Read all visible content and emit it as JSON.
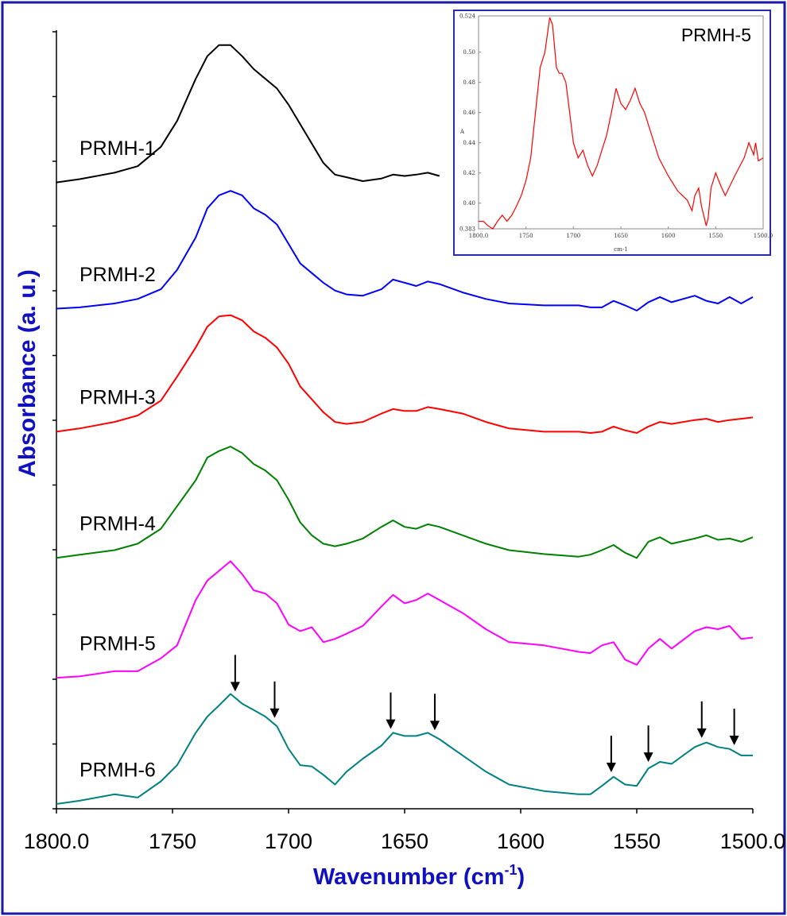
{
  "chart_data": {
    "type": "line",
    "title": "",
    "xlabel": "Wavenumber (cm",
    "xlabel_sup": "-1",
    "xlabel_close": ")",
    "ylabel": "Absorbance (a. u.)",
    "x_range": [
      1800.0,
      1500.0
    ],
    "x_ticks": [
      1800.0,
      1750,
      1700,
      1650,
      1600,
      1550,
      1500.0
    ],
    "x_tick_labels": [
      "1800.0",
      "1750",
      "1700",
      "1650",
      "1600",
      "1550",
      "1500.0"
    ],
    "y_range": [
      0,
      12
    ],
    "y_ticks": [
      0,
      1,
      2,
      3,
      4,
      5,
      6,
      7,
      8,
      9,
      10,
      11,
      12
    ],
    "series": [
      {
        "name": "PRMH-1",
        "color": "#000000",
        "offset": 9.6,
        "x": [
          1800,
          1790,
          1775,
          1765,
          1755,
          1748,
          1740,
          1735,
          1730,
          1725,
          1720,
          1715,
          1710,
          1705,
          1700,
          1695,
          1690,
          1685,
          1680,
          1675,
          1668,
          1660,
          1655,
          1650,
          1645,
          1640,
          1635
        ],
        "y": [
          0.0,
          0.05,
          0.15,
          0.25,
          0.55,
          0.95,
          1.6,
          1.95,
          2.12,
          2.12,
          1.95,
          1.75,
          1.6,
          1.45,
          1.2,
          0.9,
          0.6,
          0.3,
          0.12,
          0.08,
          0.02,
          0.06,
          0.12,
          0.1,
          0.12,
          0.15,
          0.1
        ]
      },
      {
        "name": "PRMH-2",
        "color": "#0000ff",
        "offset": 7.65,
        "x": [
          1800,
          1790,
          1775,
          1765,
          1755,
          1748,
          1740,
          1735,
          1730,
          1725,
          1720,
          1715,
          1710,
          1705,
          1700,
          1695,
          1690,
          1685,
          1680,
          1675,
          1668,
          1660,
          1655,
          1650,
          1645,
          1640,
          1635,
          1625,
          1615,
          1605,
          1590,
          1575,
          1570,
          1565,
          1560,
          1555,
          1550,
          1545,
          1540,
          1535,
          1525,
          1520,
          1515,
          1510,
          1505,
          1500
        ],
        "y": [
          0.0,
          0.02,
          0.08,
          0.15,
          0.3,
          0.6,
          1.1,
          1.55,
          1.75,
          1.82,
          1.75,
          1.55,
          1.45,
          1.3,
          1.0,
          0.7,
          0.55,
          0.4,
          0.28,
          0.22,
          0.2,
          0.3,
          0.45,
          0.4,
          0.35,
          0.42,
          0.38,
          0.25,
          0.15,
          0.08,
          0.05,
          0.05,
          0.02,
          0.02,
          0.12,
          0.05,
          -0.03,
          0.1,
          0.18,
          0.1,
          0.2,
          0.12,
          0.08,
          0.18,
          0.08,
          0.18
        ]
      },
      {
        "name": "PRMH-3",
        "color": "#ff0000",
        "offset": 5.75,
        "x": [
          1800,
          1790,
          1775,
          1765,
          1755,
          1748,
          1740,
          1735,
          1730,
          1725,
          1720,
          1715,
          1710,
          1705,
          1700,
          1695,
          1690,
          1685,
          1680,
          1675,
          1668,
          1660,
          1655,
          1650,
          1645,
          1640,
          1635,
          1625,
          1615,
          1605,
          1590,
          1575,
          1570,
          1565,
          1560,
          1555,
          1550,
          1545,
          1540,
          1535,
          1525,
          1520,
          1515,
          1510,
          1505,
          1500
        ],
        "y": [
          0.0,
          0.05,
          0.15,
          0.25,
          0.48,
          0.85,
          1.3,
          1.62,
          1.78,
          1.8,
          1.72,
          1.55,
          1.45,
          1.3,
          1.05,
          0.7,
          0.5,
          0.3,
          0.15,
          0.12,
          0.15,
          0.28,
          0.35,
          0.32,
          0.32,
          0.38,
          0.35,
          0.28,
          0.15,
          0.05,
          0.0,
          0.0,
          -0.02,
          0.0,
          0.08,
          0.02,
          -0.02,
          0.08,
          0.15,
          0.12,
          0.18,
          0.2,
          0.15,
          0.18,
          0.2,
          0.22
        ]
      },
      {
        "name": "PRMH-4",
        "color": "#008000",
        "offset": 3.8,
        "x": [
          1800,
          1790,
          1775,
          1765,
          1755,
          1748,
          1740,
          1735,
          1730,
          1725,
          1720,
          1715,
          1710,
          1705,
          1700,
          1695,
          1690,
          1685,
          1680,
          1675,
          1668,
          1660,
          1655,
          1650,
          1645,
          1640,
          1635,
          1625,
          1615,
          1605,
          1590,
          1575,
          1570,
          1565,
          1560,
          1555,
          1550,
          1545,
          1540,
          1535,
          1525,
          1520,
          1515,
          1510,
          1505,
          1500
        ],
        "y": [
          0.0,
          0.05,
          0.12,
          0.22,
          0.45,
          0.8,
          1.2,
          1.55,
          1.65,
          1.72,
          1.62,
          1.45,
          1.35,
          1.2,
          0.9,
          0.55,
          0.35,
          0.22,
          0.18,
          0.22,
          0.3,
          0.48,
          0.58,
          0.48,
          0.45,
          0.52,
          0.48,
          0.35,
          0.22,
          0.12,
          0.06,
          0.02,
          0.05,
          0.12,
          0.2,
          0.08,
          0.0,
          0.25,
          0.32,
          0.22,
          0.3,
          0.35,
          0.28,
          0.3,
          0.25,
          0.32
        ]
      },
      {
        "name": "PRMH-5",
        "color": "#ff00ff",
        "offset": 1.95,
        "x": [
          1800,
          1790,
          1775,
          1765,
          1755,
          1748,
          1740,
          1735,
          1730,
          1725,
          1720,
          1715,
          1710,
          1705,
          1700,
          1695,
          1690,
          1685,
          1680,
          1675,
          1668,
          1660,
          1655,
          1650,
          1645,
          1640,
          1635,
          1625,
          1615,
          1605,
          1590,
          1575,
          1570,
          1565,
          1560,
          1555,
          1550,
          1545,
          1540,
          1535,
          1525,
          1520,
          1515,
          1510,
          1505,
          1500
        ],
        "y": [
          0.0,
          0.02,
          0.1,
          0.1,
          0.3,
          0.5,
          1.2,
          1.5,
          1.65,
          1.8,
          1.6,
          1.35,
          1.3,
          1.15,
          0.82,
          0.72,
          0.78,
          0.55,
          0.6,
          0.68,
          0.8,
          1.1,
          1.28,
          1.15,
          1.2,
          1.3,
          1.2,
          1.0,
          0.75,
          0.55,
          0.5,
          0.4,
          0.38,
          0.5,
          0.55,
          0.28,
          0.2,
          0.45,
          0.6,
          0.45,
          0.72,
          0.78,
          0.75,
          0.8,
          0.6,
          0.62
        ]
      },
      {
        "name": "PRMH-6",
        "color": "#008080",
        "offset": 0.0,
        "x": [
          1800,
          1790,
          1775,
          1765,
          1755,
          1748,
          1740,
          1735,
          1730,
          1725,
          1720,
          1715,
          1710,
          1705,
          1700,
          1695,
          1690,
          1685,
          1680,
          1675,
          1668,
          1660,
          1655,
          1650,
          1645,
          1640,
          1635,
          1625,
          1615,
          1605,
          1590,
          1575,
          1570,
          1565,
          1560,
          1555,
          1550,
          1545,
          1540,
          1535,
          1525,
          1520,
          1515,
          1510,
          1505,
          1500
        ],
        "y": [
          0.0,
          0.05,
          0.15,
          0.1,
          0.35,
          0.6,
          1.1,
          1.35,
          1.52,
          1.7,
          1.55,
          1.45,
          1.35,
          1.2,
          0.85,
          0.6,
          0.58,
          0.45,
          0.3,
          0.5,
          0.7,
          0.9,
          1.1,
          1.05,
          1.05,
          1.1,
          1.0,
          0.75,
          0.5,
          0.3,
          0.2,
          0.15,
          0.15,
          0.28,
          0.42,
          0.3,
          0.28,
          0.55,
          0.65,
          0.62,
          0.88,
          0.95,
          0.88,
          0.85,
          0.75,
          0.75
        ]
      }
    ],
    "arrows_at": [
      1723,
      1706,
      1656,
      1637,
      1561,
      1545,
      1522,
      1508
    ],
    "inset": {
      "type": "line",
      "label": "PRMH-5",
      "color": "#ff0000",
      "xlabel": "cm-1",
      "ylabel": "A",
      "x_range": [
        1800.0,
        1500.0
      ],
      "y_range": [
        0.383,
        0.524
      ],
      "x_tick_labels": [
        "1800.0",
        "1750",
        "1700",
        "1650",
        "1600",
        "1550",
        "1500.0"
      ],
      "y_tick_labels": [
        "0.524",
        "0.50",
        "0.48",
        "0.46",
        "0.44",
        "0.42",
        "0.40",
        "0.383"
      ],
      "x": [
        1800,
        1795,
        1790,
        1785,
        1780,
        1775,
        1770,
        1765,
        1760,
        1755,
        1750,
        1745,
        1740,
        1735,
        1730,
        1725,
        1722,
        1718,
        1715,
        1712,
        1708,
        1705,
        1700,
        1695,
        1690,
        1685,
        1680,
        1675,
        1670,
        1665,
        1660,
        1655,
        1650,
        1645,
        1640,
        1635,
        1630,
        1625,
        1620,
        1615,
        1610,
        1600,
        1590,
        1580,
        1575,
        1572,
        1568,
        1565,
        1560,
        1558,
        1555,
        1550,
        1545,
        1540,
        1530,
        1520,
        1515,
        1510,
        1508,
        1505,
        1500
      ],
      "y": [
        0.388,
        0.388,
        0.385,
        0.383,
        0.388,
        0.392,
        0.388,
        0.392,
        0.398,
        0.405,
        0.415,
        0.43,
        0.46,
        0.49,
        0.5,
        0.523,
        0.518,
        0.49,
        0.486,
        0.486,
        0.48,
        0.465,
        0.44,
        0.43,
        0.435,
        0.425,
        0.418,
        0.425,
        0.435,
        0.445,
        0.46,
        0.476,
        0.466,
        0.462,
        0.468,
        0.476,
        0.466,
        0.46,
        0.45,
        0.44,
        0.43,
        0.418,
        0.408,
        0.402,
        0.395,
        0.405,
        0.41,
        0.398,
        0.385,
        0.39,
        0.41,
        0.42,
        0.412,
        0.405,
        0.418,
        0.43,
        0.44,
        0.432,
        0.44,
        0.428,
        0.43
      ]
    }
  }
}
